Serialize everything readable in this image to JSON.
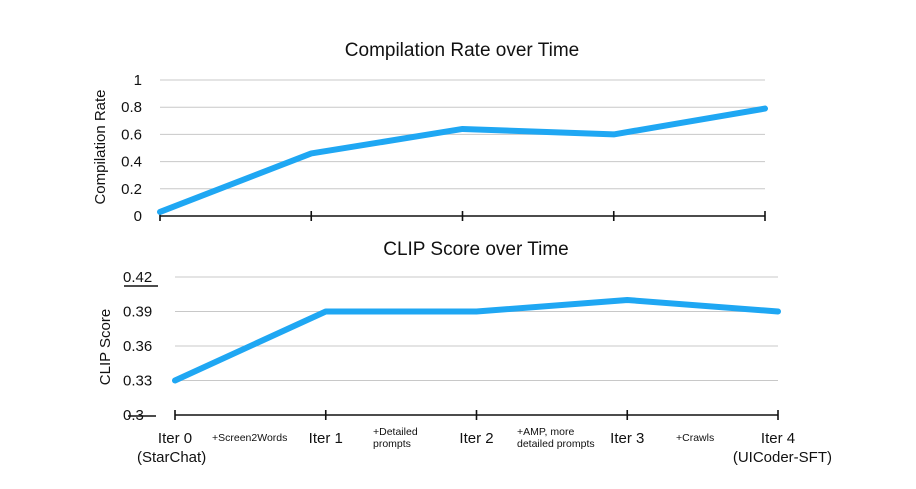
{
  "chart_data": [
    {
      "type": "line",
      "title": "Compilation Rate over Time",
      "ylabel": "Compilation Rate",
      "xlabel": "",
      "ylim": [
        0,
        1
      ],
      "yticks": [
        "0",
        "0.2",
        "0.4",
        "0.6",
        "0.8",
        "1"
      ],
      "x": [
        "Iter 0",
        "Iter 1",
        "Iter 2",
        "Iter 3",
        "Iter 4"
      ],
      "series": [
        {
          "values": [
            0.03,
            0.46,
            0.64,
            0.6,
            0.79
          ]
        }
      ],
      "grid": true,
      "color": "#1fa7f3"
    },
    {
      "type": "line",
      "title": "CLIP Score over Time",
      "ylabel": "CLIP Score",
      "xlabel": "",
      "ylim": [
        0.3,
        0.42
      ],
      "yticks": [
        "0.3",
        "0.33",
        "0.36",
        "0.39",
        "0.42"
      ],
      "x": [
        "Iter 0",
        "Iter 1",
        "Iter 2",
        "Iter 3",
        "Iter 4"
      ],
      "x_sublabels": [
        "(StarChat)",
        "",
        "",
        "",
        "(UICoder-SFT)"
      ],
      "interval_annotations": [
        [
          "+Screen2Words"
        ],
        [
          "+Detailed",
          "prompts"
        ],
        [
          "+AMP, more",
          "detailed prompts"
        ],
        [
          "+Crawls"
        ]
      ],
      "series": [
        {
          "values": [
            0.33,
            0.39,
            0.39,
            0.4,
            0.39
          ]
        }
      ],
      "grid": true,
      "color": "#1fa7f3"
    }
  ]
}
